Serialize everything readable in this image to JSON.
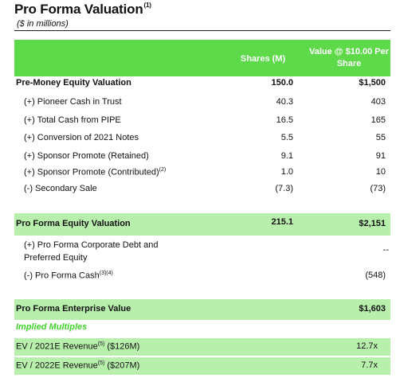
{
  "header": {
    "title": "Pro Forma Valuation",
    "title_note": "(1)",
    "subtitle": "($ in millions)"
  },
  "table": {
    "col_shares": "Shares (M)",
    "col_value": "Value @ $10.00 Per Share",
    "rows": [
      {
        "label": "Pre-Money Equity Valuation",
        "shares": "150.0",
        "value": "$1,500"
      },
      {
        "label": "(+) Pioneer Cash in Trust",
        "shares": "40.3",
        "value": "403"
      },
      {
        "label": "(+) Total Cash from PIPE",
        "shares": "16.5",
        "value": "165"
      },
      {
        "label": "(+) Conversion of 2021 Notes",
        "shares": "5.5",
        "value": "55"
      },
      {
        "label": "(+) Sponsor Promote (Retained)",
        "shares": "9.1",
        "value": "91"
      },
      {
        "label": "(+) Sponsor Promote (Contributed)",
        "note": "(2)",
        "shares": "1.0",
        "value": "10"
      },
      {
        "label": "(-) Secondary Sale",
        "shares": "(7.3)",
        "value": "(73)"
      },
      {
        "label": "Pro Forma Equity Valuation",
        "shares": "215.1",
        "value": "$2,151"
      },
      {
        "label_line1": "(+) Pro Forma Corporate Debt and",
        "label_line2": "Preferred Equity",
        "value": "--"
      },
      {
        "label": "(-) Pro Forma Cash",
        "note": "(3)(4)",
        "value": "(548)"
      },
      {
        "label": "Pro Forma Enterprise Value",
        "value": "$1,603"
      }
    ],
    "implied_title": "Implied Multiples",
    "multiples": [
      {
        "label_a": "EV / 2021E Revenue",
        "note": "(5)",
        "label_b": " ($126M)",
        "value": "12.7x"
      },
      {
        "label_a": "EV / 2022E Revenue",
        "note": "(5)",
        "label_b": " ($207M)",
        "value": "7.7x"
      }
    ]
  },
  "colors": {
    "header_green": "#5dd94a",
    "band_green": "#b8efac",
    "implied_green": "#3fd22a"
  }
}
